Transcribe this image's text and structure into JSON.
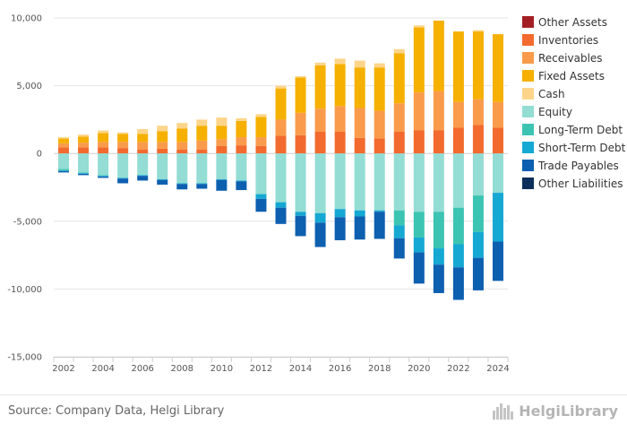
{
  "source": "Source: Company Data, Helgi Library",
  "brand": "HelgiLibrary",
  "chart_data": {
    "type": "bar",
    "stacked": true,
    "title": "",
    "xlabel": "",
    "ylabel": "",
    "ylim": [
      -15000,
      10000
    ],
    "y_ticks": [
      -15000,
      -10000,
      -5000,
      0,
      5000,
      10000
    ],
    "y_tick_labels": [
      "-15,000",
      "-10,000",
      "-5,000",
      "0",
      "5,000",
      "10,000"
    ],
    "x_tick_labels": [
      "2002",
      "2004",
      "2006",
      "2008",
      "2010",
      "2012",
      "2014",
      "2016",
      "2018",
      "2020",
      "2022",
      "2024"
    ],
    "grid": true,
    "legend_position": "right",
    "categories": [
      "2002",
      "2003",
      "2004",
      "2005",
      "2006",
      "2007",
      "2008",
      "2009",
      "2010",
      "2011",
      "2012",
      "2013",
      "2014",
      "2015",
      "2016",
      "2017",
      "2018",
      "2019",
      "2020",
      "2021",
      "2022",
      "2023",
      "2024"
    ],
    "assets": [
      {
        "name": "Other Assets",
        "color": "#a31f24",
        "values": [
          0,
          0,
          0,
          0,
          0,
          0,
          0,
          0,
          0,
          0,
          0,
          0,
          0,
          0,
          0,
          0,
          0,
          0,
          0,
          0,
          0,
          0,
          0
        ]
      },
      {
        "name": "Inventories",
        "color": "#f26a2e",
        "values": [
          450,
          450,
          450,
          400,
          300,
          350,
          300,
          300,
          550,
          600,
          550,
          1300,
          1350,
          1600,
          1600,
          1150,
          1100,
          1600,
          1700,
          1700,
          1900,
          2100,
          1900
        ]
      },
      {
        "name": "Receivables",
        "color": "#f99b4b",
        "values": [
          300,
          350,
          400,
          450,
          550,
          500,
          550,
          650,
          500,
          600,
          650,
          1200,
          1650,
          1700,
          1900,
          2200,
          2050,
          2100,
          2800,
          2900,
          1900,
          1900,
          1900
        ]
      },
      {
        "name": "Fixed Assets",
        "color": "#f5b000",
        "values": [
          350,
          450,
          650,
          600,
          600,
          800,
          1000,
          1100,
          1000,
          1200,
          1500,
          2300,
          2600,
          3200,
          3100,
          3000,
          3200,
          3700,
          4800,
          5200,
          5200,
          5000,
          5000
        ]
      },
      {
        "name": "Cash",
        "color": "#fdd58a",
        "values": [
          100,
          150,
          200,
          100,
          350,
          400,
          400,
          450,
          600,
          200,
          200,
          200,
          100,
          200,
          400,
          500,
          300,
          300,
          150,
          0,
          0,
          100,
          0
        ]
      }
    ],
    "liabilities": [
      {
        "name": "Equity",
        "color": "#93ddd4",
        "values": [
          -1150,
          -1400,
          -1600,
          -1800,
          -1600,
          -1900,
          -2200,
          -2200,
          -1900,
          -2000,
          -3000,
          -3600,
          -4300,
          -4400,
          -4100,
          -4200,
          -4200,
          -4200,
          -4300,
          -4300,
          -4000,
          -3100,
          -2900
        ]
      },
      {
        "name": "Long-Term Debt",
        "color": "#3cc4b3",
        "values": [
          -100,
          -50,
          -50,
          0,
          0,
          0,
          0,
          0,
          0,
          0,
          0,
          0,
          0,
          0,
          0,
          0,
          0,
          -1100,
          -1900,
          -2700,
          -2700,
          -2700,
          0
        ]
      },
      {
        "name": "Short-Term Debt",
        "color": "#15a8d3",
        "values": [
          -50,
          -50,
          -50,
          -50,
          -50,
          -50,
          -50,
          -50,
          -50,
          -50,
          -350,
          -400,
          -300,
          -700,
          -600,
          -450,
          -100,
          -950,
          -1100,
          -1200,
          -1700,
          -1900,
          -3600
        ]
      },
      {
        "name": "Trade Payables",
        "color": "#0d5fb0",
        "values": [
          -100,
          -100,
          -100,
          -350,
          -350,
          -350,
          -400,
          -350,
          -800,
          -650,
          -950,
          -1200,
          -1500,
          -1800,
          -1700,
          -1700,
          -2000,
          -1500,
          -2300,
          -2100,
          -2400,
          -2400,
          -2900
        ]
      },
      {
        "name": "Other Liabilities",
        "color": "#0b2e5a",
        "values": [
          0,
          0,
          0,
          0,
          0,
          0,
          0,
          0,
          0,
          0,
          0,
          0,
          0,
          0,
          0,
          0,
          0,
          0,
          0,
          0,
          0,
          0,
          0
        ]
      }
    ],
    "legend_order": [
      "Other Assets",
      "Inventories",
      "Receivables",
      "Fixed Assets",
      "Cash",
      "Equity",
      "Long-Term Debt",
      "Short-Term Debt",
      "Trade Payables",
      "Other Liabilities"
    ]
  }
}
